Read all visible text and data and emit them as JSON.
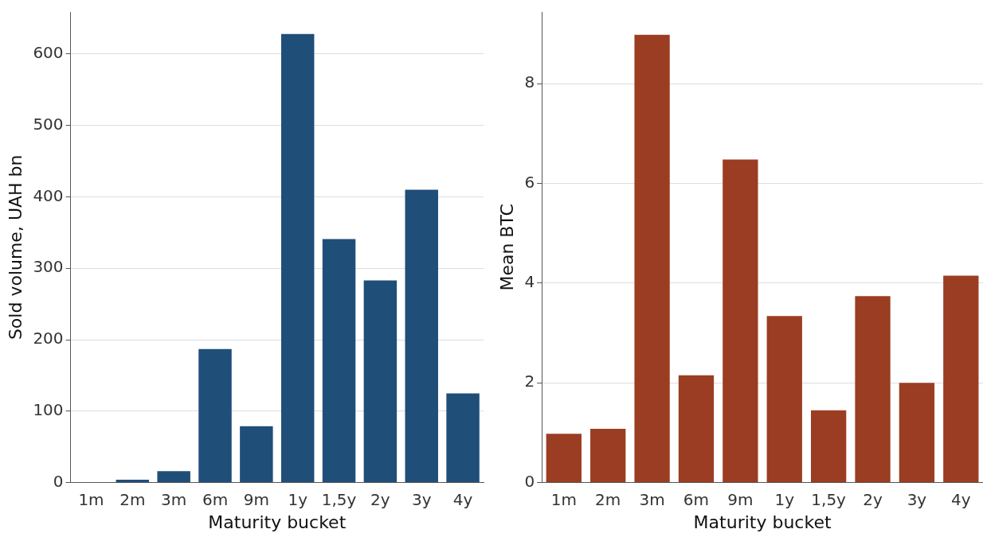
{
  "chart_data": [
    {
      "type": "bar",
      "xlabel": "Maturity bucket",
      "ylabel": "Sold volume, UAH bn",
      "categories": [
        "1m",
        "2m",
        "3m",
        "6m",
        "9m",
        "1y",
        "1,5y",
        "2y",
        "3y",
        "4y"
      ],
      "series": [
        {
          "color": "#1f4e79",
          "values": [
            null,
            4,
            16,
            187,
            79,
            628,
            341,
            283,
            410,
            125
          ]
        }
      ],
      "ylim": [
        0,
        659
      ],
      "yticks": [
        0,
        100,
        200,
        300,
        400,
        500,
        600
      ],
      "grid": "y",
      "legend": false
    },
    {
      "type": "bar",
      "xlabel": "Maturity bucket",
      "ylabel": "Mean BTC",
      "categories": [
        "1m",
        "2m",
        "3m",
        "6m",
        "9m",
        "1y",
        "1,5y",
        "2y",
        "3y",
        "4y"
      ],
      "series": [
        {
          "color": "#9b3d22",
          "values": [
            0.98,
            1.08,
            8.98,
            2.15,
            6.48,
            3.34,
            1.45,
            3.74,
            2.0,
            4.15
          ]
        }
      ],
      "ylim": [
        0,
        9.44
      ],
      "yticks": [
        0,
        2,
        4,
        6,
        8
      ],
      "grid": "y",
      "legend": false
    }
  ]
}
